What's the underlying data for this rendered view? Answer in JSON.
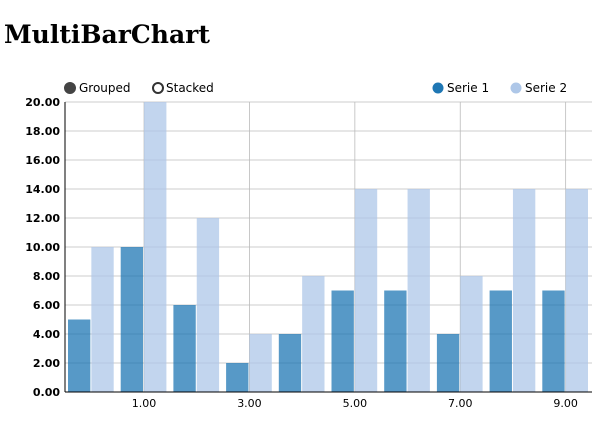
{
  "page": {
    "title": "MultiBarChart"
  },
  "controls": [
    {
      "label": "Grouped",
      "selected": true
    },
    {
      "label": "Stacked",
      "selected": false
    }
  ],
  "colors": {
    "serie1": "#1f77b4",
    "serie2": "#aec7e8",
    "grid": "#bbbbbb",
    "axis": "#000000"
  },
  "chart_data": {
    "type": "bar",
    "mode": "grouped",
    "x": [
      0,
      1,
      2,
      3,
      4,
      5,
      6,
      7,
      8,
      9
    ],
    "x_tick_labels": [
      "1.00",
      "3.00",
      "5.00",
      "7.00",
      "9.00"
    ],
    "y_tick_labels": [
      "0.00",
      "2.00",
      "4.00",
      "6.00",
      "8.00",
      "10.00",
      "12.00",
      "14.00",
      "16.00",
      "18.00",
      "20.00"
    ],
    "ylim": [
      0,
      20
    ],
    "grid": true,
    "legend_position": "top-right",
    "series": [
      {
        "name": "Serie 1",
        "color": "#1f77b4",
        "values": [
          5,
          10,
          6,
          2,
          4,
          7,
          7,
          4,
          7,
          7
        ]
      },
      {
        "name": "Serie 2",
        "color": "#aec7e8",
        "values": [
          10,
          20,
          12,
          4,
          8,
          14,
          14,
          8,
          14,
          14
        ]
      }
    ]
  }
}
